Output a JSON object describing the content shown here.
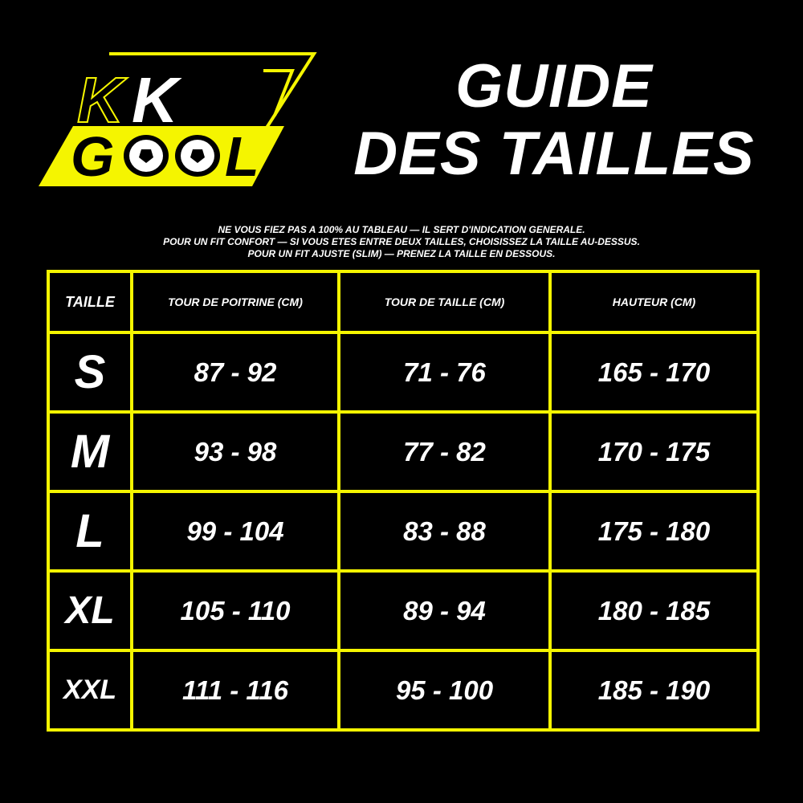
{
  "logo": {
    "line1": "KK",
    "line2": "GOOL",
    "accent": "#f5f500"
  },
  "title": {
    "line1": "GUIDE",
    "line2": "DES TAILLES"
  },
  "notes": [
    "NE VOUS FIEZ PAS A 100% AU TABLEAU — IL SERT D'INDICATION GENERALE.",
    "POUR UN FIT CONFORT — SI VOUS ETES ENTRE DEUX TAILLES, CHOISISSEZ LA TAILLE AU-DESSUS.",
    "POUR UN FIT AJUSTE (SLIM) — PRENEZ LA TAILLE EN DESSOUS."
  ],
  "table": {
    "headers": [
      "TAILLE",
      "TOUR DE POITRINE (CM)",
      "TOUR DE TAILLE (CM)",
      "HAUTEUR (CM)"
    ],
    "rows": [
      [
        "S",
        "87 - 92",
        "71 - 76",
        "165 - 170"
      ],
      [
        "M",
        "93 - 98",
        "77 - 82",
        "170 - 175"
      ],
      [
        "L",
        "99 - 104",
        "83 - 88",
        "175 - 180"
      ],
      [
        "XL",
        "105 - 110",
        "89 - 94",
        "180 - 185"
      ],
      [
        "XXL",
        "111 - 116",
        "95 - 100",
        "185 - 190"
      ]
    ],
    "border_color": "#f5f500"
  }
}
